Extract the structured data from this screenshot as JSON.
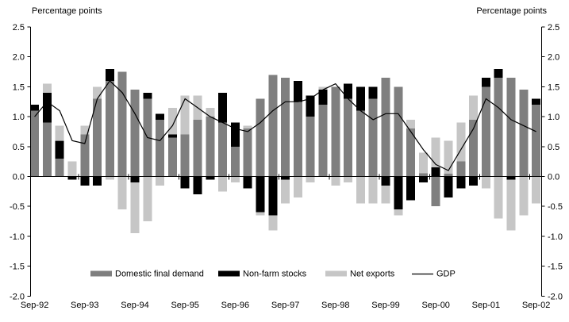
{
  "header": {
    "left_axis_title": "Percentage points",
    "right_axis_title": "Percentage points"
  },
  "colors": {
    "domestic_final_demand": "#7f7f7f",
    "non_farm_stocks": "#000000",
    "net_exports": "#c6c6c6",
    "gdp_line": "#000000",
    "background": "#ffffff",
    "axis": "#000000"
  },
  "chart_data": {
    "type": "bar",
    "subtype": "stacked-bar-with-line",
    "ylabel": "Percentage points",
    "ylim": [
      -2.0,
      2.5
    ],
    "ytick_step": 0.5,
    "grid": false,
    "legend_position": "bottom-inside",
    "categories": [
      "Sep-92",
      "Dec-92",
      "Mar-93",
      "Jun-93",
      "Sep-93",
      "Dec-93",
      "Mar-94",
      "Jun-94",
      "Sep-94",
      "Dec-94",
      "Mar-95",
      "Jun-95",
      "Sep-95",
      "Dec-95",
      "Mar-96",
      "Jun-96",
      "Sep-96",
      "Dec-96",
      "Mar-97",
      "Jun-97",
      "Sep-97",
      "Dec-97",
      "Mar-98",
      "Jun-98",
      "Sep-98",
      "Dec-98",
      "Mar-99",
      "Jun-99",
      "Sep-99",
      "Dec-99",
      "Mar-00",
      "Jun-00",
      "Sep-00",
      "Dec-00",
      "Mar-01",
      "Jun-01",
      "Sep-01",
      "Dec-01",
      "Mar-02",
      "Jun-02",
      "Sep-02"
    ],
    "x_tick_labels": [
      "Sep-92",
      "Sep-93",
      "Sep-94",
      "Sep-95",
      "Sep-96",
      "Sep-97",
      "Sep-98",
      "Sep-99",
      "Sep-00",
      "Sep-01",
      "Sep-02"
    ],
    "series": [
      {
        "name": "Domestic final demand",
        "type": "bar",
        "color": "#7f7f7f",
        "values": [
          1.1,
          0.9,
          0.3,
          0.0,
          0.7,
          1.3,
          1.6,
          1.75,
          1.45,
          1.3,
          0.95,
          0.65,
          0.7,
          0.95,
          1.0,
          0.9,
          0.5,
          0.8,
          1.3,
          1.7,
          1.65,
          1.25,
          1.0,
          1.2,
          1.5,
          1.3,
          1.1,
          1.3,
          1.65,
          1.5,
          0.8,
          0.05,
          -0.5,
          0.05,
          0.25,
          0.95,
          1.5,
          1.65,
          1.65,
          1.45,
          1.2
        ]
      },
      {
        "name": "Non-farm stocks",
        "type": "bar",
        "color": "#000000",
        "values": [
          0.1,
          0.5,
          0.3,
          -0.05,
          -0.15,
          -0.15,
          0.2,
          0.0,
          -0.1,
          0.1,
          0.1,
          0.05,
          -0.2,
          -0.3,
          -0.05,
          0.5,
          0.4,
          -0.2,
          -0.6,
          -0.65,
          -0.05,
          0.35,
          0.35,
          0.25,
          0.0,
          0.25,
          0.4,
          0.2,
          -0.15,
          -0.55,
          -0.4,
          -0.1,
          0.15,
          -0.35,
          -0.2,
          -0.15,
          0.15,
          0.15,
          -0.05,
          0.0,
          0.1
        ]
      },
      {
        "name": "Net exports",
        "type": "bar",
        "color": "#c6c6c6",
        "values": [
          0.0,
          0.15,
          0.25,
          0.25,
          0.15,
          0.2,
          -0.05,
          -0.55,
          -0.85,
          -0.75,
          -0.15,
          0.45,
          0.65,
          0.4,
          0.15,
          -0.25,
          -0.1,
          0.05,
          -0.05,
          -0.25,
          -0.4,
          -0.35,
          -0.1,
          0.05,
          -0.15,
          -0.1,
          -0.45,
          -0.45,
          -0.3,
          -0.1,
          0.15,
          0.35,
          0.5,
          0.55,
          0.65,
          0.4,
          -0.2,
          -0.7,
          -0.85,
          -0.65,
          -0.45
        ]
      },
      {
        "name": "GDP",
        "type": "line",
        "color": "#000000",
        "values": [
          1.0,
          1.25,
          1.1,
          0.6,
          0.55,
          1.3,
          1.6,
          1.4,
          1.05,
          0.65,
          0.6,
          0.85,
          1.3,
          1.15,
          1.0,
          0.9,
          0.8,
          0.75,
          0.9,
          1.1,
          1.25,
          1.25,
          1.3,
          1.45,
          1.55,
          1.3,
          1.1,
          0.95,
          1.05,
          1.05,
          0.75,
          0.45,
          0.2,
          0.1,
          0.45,
          0.8,
          1.3,
          1.15,
          0.95,
          0.85,
          0.75
        ]
      }
    ],
    "legend": [
      "Domestic final demand",
      "Non-farm stocks",
      "Net exports",
      "GDP"
    ]
  }
}
